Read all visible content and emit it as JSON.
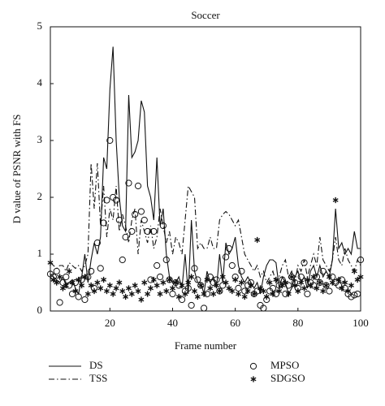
{
  "chart_data": {
    "type": "line",
    "title": "Soccer",
    "xlabel": "Frame number",
    "ylabel": "D value of PSNR with FS",
    "x": [
      1,
      2,
      3,
      4,
      5,
      6,
      7,
      8,
      9,
      10,
      11,
      12,
      13,
      14,
      15,
      16,
      17,
      18,
      19,
      20,
      21,
      22,
      23,
      24,
      25,
      26,
      27,
      28,
      29,
      30,
      31,
      32,
      33,
      34,
      35,
      36,
      37,
      38,
      39,
      40,
      41,
      42,
      43,
      44,
      45,
      46,
      47,
      48,
      49,
      50,
      51,
      52,
      53,
      54,
      55,
      56,
      57,
      58,
      59,
      60,
      61,
      62,
      63,
      64,
      65,
      66,
      67,
      68,
      69,
      70,
      71,
      72,
      73,
      74,
      75,
      76,
      77,
      78,
      79,
      80,
      81,
      82,
      83,
      84,
      85,
      86,
      87,
      88,
      89,
      90,
      91,
      92,
      93,
      94,
      95,
      96,
      97,
      98,
      99,
      100
    ],
    "xlim": [
      1,
      100
    ],
    "xticks": [
      20,
      40,
      60,
      80,
      100
    ],
    "ylim": [
      0,
      5
    ],
    "yticks": [
      0,
      1,
      2,
      3,
      4,
      5
    ],
    "grid": false,
    "series": [
      {
        "name": "DS",
        "color": "#111111",
        "style": "solid",
        "marker": "none",
        "values": [
          0.65,
          0.6,
          0.55,
          0.5,
          0.6,
          0.45,
          0.5,
          0.55,
          0.4,
          0.3,
          0.6,
          1.0,
          0.5,
          0.9,
          1.2,
          1.0,
          1.3,
          2.7,
          2.5,
          3.9,
          4.65,
          3.0,
          2.0,
          1.5,
          1.4,
          3.8,
          2.7,
          2.8,
          3.0,
          3.7,
          3.5,
          2.2,
          2.0,
          1.6,
          2.7,
          1.5,
          1.8,
          1.0,
          0.6,
          0.5,
          0.5,
          0.6,
          0.4,
          1.0,
          0.3,
          1.6,
          0.7,
          0.5,
          0.5,
          0.3,
          0.7,
          0.5,
          0.6,
          0.4,
          1.0,
          0.5,
          1.2,
          1.0,
          1.1,
          1.3,
          0.8,
          0.6,
          0.5,
          0.6,
          0.5,
          0.4,
          0.5,
          0.3,
          0.6,
          0.8,
          0.9,
          0.9,
          0.85,
          0.4,
          0.6,
          0.5,
          0.3,
          0.4,
          0.6,
          0.7,
          0.5,
          0.6,
          0.4,
          0.7,
          0.8,
          0.6,
          0.8,
          0.6,
          0.7,
          0.6,
          0.9,
          1.8,
          1.1,
          1.2,
          1.0,
          1.1,
          1.0,
          1.4,
          1.1,
          1.1
        ]
      },
      {
        "name": "TSS",
        "color": "#111111",
        "style": "dashdot",
        "marker": "none",
        "values": [
          0.85,
          0.8,
          0.75,
          0.8,
          0.8,
          0.7,
          0.85,
          0.8,
          0.75,
          0.8,
          0.7,
          0.8,
          1.0,
          2.6,
          1.8,
          2.6,
          1.5,
          2.2,
          1.3,
          1.8,
          1.6,
          2.2,
          1.4,
          1.7,
          1.5,
          1.2,
          1.6,
          1.8,
          1.0,
          1.6,
          1.4,
          1.2,
          1.5,
          1.1,
          1.3,
          1.8,
          1.5,
          1.2,
          1.4,
          1.0,
          1.3,
          1.2,
          1.0,
          1.6,
          2.2,
          2.1,
          2.0,
          1.1,
          1.2,
          1.1,
          1.1,
          1.3,
          1.1,
          1.1,
          1.6,
          1.7,
          1.75,
          1.7,
          1.6,
          1.5,
          1.6,
          1.3,
          1.0,
          0.9,
          0.8,
          0.7,
          0.8,
          0.6,
          0.7,
          0.5,
          0.6,
          0.7,
          0.5,
          0.6,
          0.8,
          0.9,
          0.6,
          0.7,
          0.5,
          0.8,
          0.7,
          0.9,
          0.6,
          0.8,
          1.0,
          0.8,
          1.3,
          0.9,
          0.8,
          0.7,
          0.9,
          1.3,
          0.9,
          0.8,
          1.1,
          0.9,
          0.8,
          0.7,
          0.9,
          0.8
        ]
      },
      {
        "name": "MPSO",
        "color": "#111111",
        "style": "none",
        "marker": "circle",
        "values": [
          0.65,
          0.6,
          0.7,
          0.15,
          0.5,
          0.6,
          0.45,
          0.3,
          0.5,
          0.25,
          0.55,
          0.2,
          0.6,
          0.7,
          0.4,
          1.2,
          0.75,
          1.55,
          1.95,
          3.0,
          2.0,
          1.95,
          1.6,
          0.9,
          1.3,
          2.25,
          1.4,
          1.7,
          2.2,
          1.75,
          1.6,
          1.4,
          0.55,
          1.4,
          0.8,
          0.6,
          1.5,
          0.9,
          0.55,
          0.3,
          0.5,
          0.45,
          0.2,
          0.35,
          0.4,
          0.1,
          0.75,
          0.55,
          0.45,
          0.05,
          0.3,
          0.6,
          0.5,
          0.55,
          0.35,
          0.45,
          0.95,
          1.1,
          0.8,
          0.6,
          0.4,
          0.7,
          0.35,
          0.45,
          0.5,
          0.3,
          0.35,
          0.1,
          0.05,
          0.2,
          0.35,
          0.4,
          0.3,
          0.45,
          0.55,
          0.3,
          0.45,
          0.6,
          0.5,
          0.4,
          0.6,
          0.85,
          0.3,
          0.5,
          0.45,
          0.6,
          0.5,
          0.7,
          0.45,
          0.35,
          0.6,
          0.5,
          0.45,
          0.55,
          0.4,
          0.3,
          0.25,
          0.28,
          0.3,
          0.9
        ]
      },
      {
        "name": "SDGSO",
        "color": "#111111",
        "style": "none",
        "marker": "asterisk",
        "values": [
          0.85,
          0.55,
          0.5,
          0.6,
          0.4,
          0.45,
          0.7,
          0.5,
          0.35,
          0.55,
          0.45,
          0.6,
          0.3,
          0.45,
          0.35,
          0.5,
          0.4,
          0.55,
          0.35,
          0.45,
          0.3,
          0.4,
          0.5,
          0.35,
          0.25,
          0.4,
          0.3,
          0.45,
          0.35,
          0.2,
          0.5,
          0.3,
          0.4,
          0.55,
          0.45,
          0.3,
          0.5,
          0.35,
          0.55,
          0.4,
          0.5,
          0.25,
          0.45,
          0.3,
          0.5,
          0.6,
          0.35,
          0.25,
          0.45,
          0.3,
          0.55,
          0.4,
          0.3,
          0.45,
          0.35,
          0.6,
          0.5,
          0.4,
          0.35,
          0.55,
          0.3,
          0.5,
          0.25,
          0.35,
          0.45,
          0.3,
          1.25,
          0.4,
          0.35,
          0.25,
          0.5,
          0.3,
          0.55,
          0.35,
          0.45,
          0.5,
          0.3,
          0.6,
          0.45,
          0.35,
          0.5,
          0.4,
          0.55,
          0.45,
          0.6,
          0.4,
          0.5,
          0.35,
          0.45,
          0.6,
          0.5,
          1.95,
          0.55,
          0.4,
          0.5,
          0.35,
          0.45,
          0.7,
          0.55,
          0.6
        ]
      }
    ]
  }
}
